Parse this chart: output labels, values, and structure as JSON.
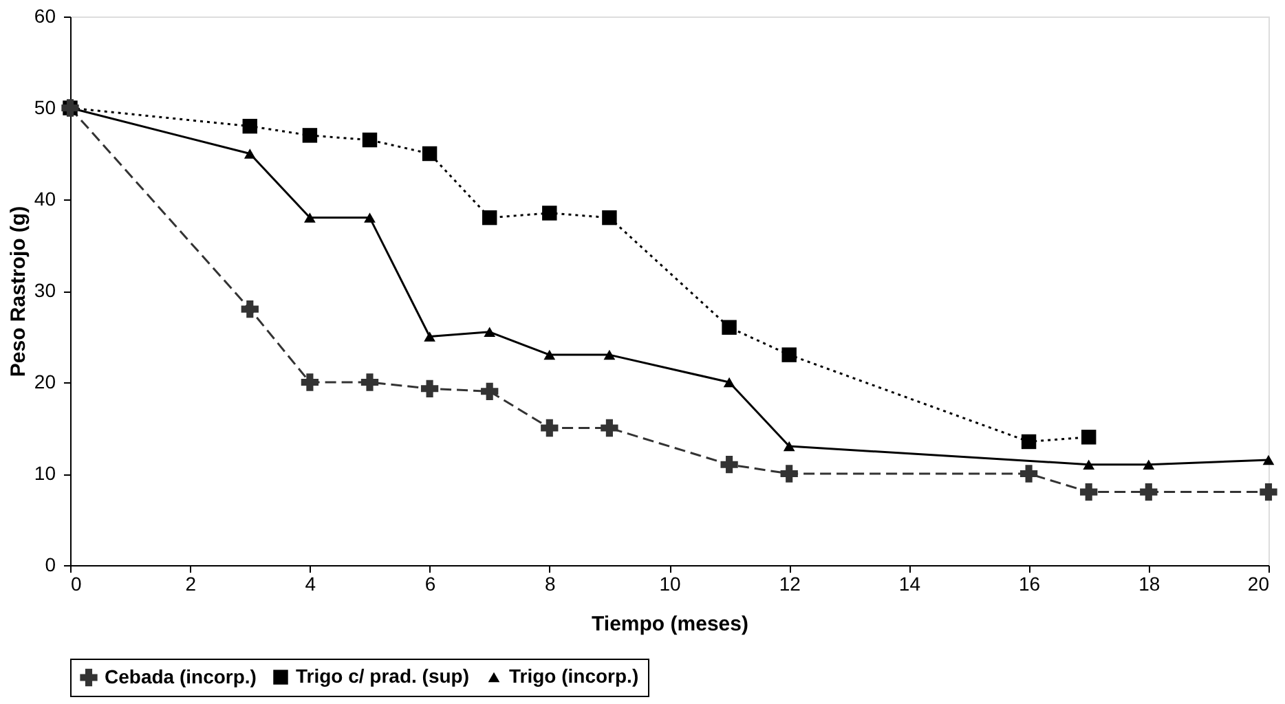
{
  "chart_data": {
    "type": "line",
    "xlabel": "Tiempo (meses)",
    "ylabel": "Peso Rastrojo (g)",
    "xlim": [
      0,
      20
    ],
    "xticks": [
      0,
      2,
      4,
      6,
      8,
      10,
      12,
      14,
      16,
      18,
      20
    ],
    "ylim": [
      0,
      60
    ],
    "yticks": [
      0,
      10,
      20,
      30,
      40,
      50,
      60
    ],
    "grid": false,
    "legend": "bottom",
    "series": [
      {
        "name": "Cebada (incorp.)",
        "color": "#333333",
        "marker": "cross",
        "line_style": "dashed",
        "x": [
          0,
          3,
          4,
          5,
          6,
          7,
          8,
          9,
          11,
          12,
          16,
          17,
          18,
          20
        ],
        "values": [
          50,
          28,
          20,
          20,
          19.3,
          19,
          15,
          15,
          11,
          10,
          10,
          8,
          8,
          8
        ]
      },
      {
        "name": "Trigo c/ prad. (sup)",
        "color": "#000000",
        "marker": "square",
        "line_style": "dotted",
        "x": [
          0,
          3,
          4,
          5,
          6,
          7,
          8,
          9,
          11,
          12,
          16,
          17
        ],
        "values": [
          50,
          48,
          47,
          46.5,
          45,
          38,
          38.5,
          38,
          26,
          23,
          13.5,
          14
        ]
      },
      {
        "name": "Trigo (incorp.)",
        "color": "#000000",
        "marker": "triangle",
        "line_style": "solid",
        "x": [
          0,
          3,
          4,
          5,
          6,
          7,
          8,
          9,
          11,
          12,
          17,
          18,
          20
        ],
        "values": [
          50,
          45,
          38,
          38,
          25,
          25.5,
          23,
          23,
          20,
          13,
          11,
          11,
          11.5
        ]
      }
    ]
  }
}
